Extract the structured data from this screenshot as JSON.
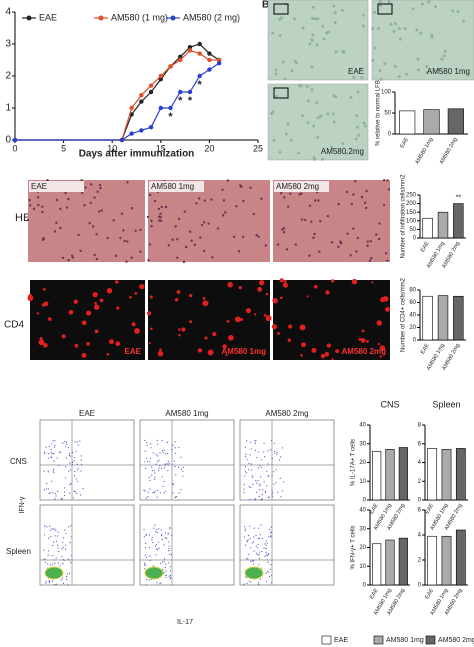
{
  "panel_letter": "B",
  "chart_data": [
    {
      "type": "line",
      "legend": "upper left",
      "xlabel": "Days after immunization",
      "x": [
        0,
        11,
        12,
        13,
        14,
        15,
        16,
        17,
        18,
        19,
        20,
        21
      ],
      "series": [
        {
          "name": "EAE",
          "color": "#222222",
          "values": [
            0,
            0,
            0.8,
            1.2,
            1.5,
            1.9,
            2.3,
            2.6,
            2.9,
            3.0,
            2.7,
            2.5
          ]
        },
        {
          "name": "AM580 (1 mg)",
          "color": "#e0502a",
          "values": [
            0,
            0,
            1.0,
            1.4,
            1.7,
            2.0,
            2.3,
            2.5,
            2.8,
            2.7,
            2.5,
            2.5
          ]
        },
        {
          "name": "AM580 (2 mg)",
          "color": "#2a3fd0",
          "values": [
            0,
            0,
            0.2,
            0.3,
            0.4,
            1.0,
            1.0,
            1.5,
            1.5,
            2.0,
            2.2,
            2.4
          ]
        }
      ],
      "xlim": [
        0,
        25
      ],
      "xticks": [
        0,
        5,
        10,
        15,
        20,
        25
      ],
      "ylim": [
        0,
        4
      ],
      "yticks": [
        0,
        1,
        2,
        3,
        4
      ],
      "annotations": [
        {
          "text": "*",
          "x": 16
        },
        {
          "text": "*",
          "x": 17
        },
        {
          "text": "*",
          "x": 18
        },
        {
          "text": "*",
          "x": 19
        }
      ]
    },
    {
      "type": "bar",
      "ylabel": "% relative to normal LFB",
      "categories": [
        "EAE",
        "AM580 1mg",
        "AM580 2mg"
      ],
      "values": [
        55,
        58,
        60
      ],
      "colors": [
        "#ffffff",
        "#aaaaaa",
        "#666666"
      ],
      "ylim": [
        0,
        100
      ],
      "yticks": [
        0,
        50,
        100
      ]
    },
    {
      "type": "bar",
      "ylabel": "Number of infiltration cells/mm2",
      "categories": [
        "EAE",
        "AM580 1mg",
        "AM580 2mg"
      ],
      "values": [
        115,
        150,
        200
      ],
      "colors": [
        "#ffffff",
        "#aaaaaa",
        "#666666"
      ],
      "ylim": [
        0,
        250
      ],
      "yticks": [
        0,
        50,
        100,
        150,
        200,
        250
      ],
      "annotations": [
        {
          "text": "**",
          "index": 2
        }
      ]
    },
    {
      "type": "bar",
      "ylabel": "Number of CD4+ cells/mm2",
      "categories": [
        "EAE",
        "AM580 1mg",
        "AM580 2mg"
      ],
      "values": [
        70,
        71,
        70
      ],
      "colors": [
        "#ffffff",
        "#aaaaaa",
        "#666666"
      ],
      "ylim": [
        0,
        80
      ],
      "yticks": [
        0,
        20,
        40,
        60,
        80
      ]
    },
    {
      "type": "bar",
      "title": "CNS",
      "ylabel": "% IL-17A+ T cells",
      "categories": [
        "EAE",
        "AM580 1mg",
        "AM580 2mg"
      ],
      "values": [
        26,
        27,
        28
      ],
      "colors": [
        "#ffffff",
        "#aaaaaa",
        "#666666"
      ],
      "ylim": [
        0,
        40
      ],
      "yticks": [
        0,
        10,
        20,
        30,
        40
      ]
    },
    {
      "type": "bar",
      "title": "Spleen",
      "categories": [
        "EAE",
        "AM580 1mg",
        "AM580 2mg"
      ],
      "values": [
        5.5,
        5.4,
        5.5
      ],
      "colors": [
        "#ffffff",
        "#aaaaaa",
        "#666666"
      ],
      "ylim": [
        0,
        8
      ],
      "yticks": [
        0,
        2,
        4,
        6,
        8
      ]
    },
    {
      "type": "bar",
      "ylabel": "% IFN-γ+ T cells",
      "categories": [
        "EAE",
        "AM580 1mg",
        "AM580 2mg"
      ],
      "values": [
        22,
        24,
        25
      ],
      "colors": [
        "#ffffff",
        "#aaaaaa",
        "#666666"
      ],
      "ylim": [
        0,
        40
      ],
      "yticks": [
        0,
        10,
        20,
        30,
        40
      ]
    },
    {
      "type": "bar",
      "categories": [
        "EAE",
        "AM580 1mg",
        "AM580 2mg"
      ],
      "values": [
        3.9,
        3.9,
        4.4
      ],
      "colors": [
        "#ffffff",
        "#aaaaaa",
        "#666666"
      ],
      "ylim": [
        0,
        6
      ],
      "yticks": [
        0,
        2,
        4,
        6
      ]
    }
  ],
  "legend": [
    {
      "name": "EAE",
      "color": "#ffffff"
    },
    {
      "name": "AM580 1mg",
      "color": "#aaaaaa"
    },
    {
      "name": "AM580 2mg",
      "color": "#666666"
    }
  ],
  "lfb": {
    "labels": [
      "EAE",
      "AM580 1mg",
      "AM580 2mg"
    ]
  },
  "he": {
    "row_label": "HE",
    "labels": [
      "EAE",
      "AM580 1mg",
      "AM580 2mg"
    ]
  },
  "cd4": {
    "row_label": "CD4",
    "labels": [
      "EAE",
      "AM580 1mg",
      "AM580 2mg"
    ]
  },
  "flow": {
    "columns": [
      "EAE",
      "AM580 1mg",
      "AM580 2mg"
    ],
    "rows": [
      "CNS",
      "Spleen"
    ],
    "ylabel": "IFN-γ",
    "xlabel": "IL-17"
  }
}
